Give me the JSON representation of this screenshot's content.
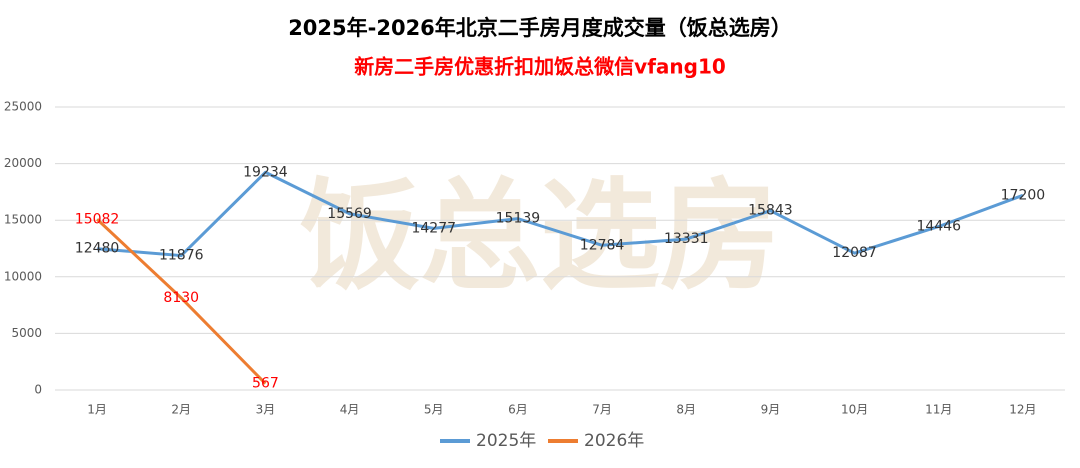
{
  "chart_data": {
    "type": "line",
    "title": "2025年-2026年北京二手房月度成交量（饭总选房）",
    "subtitle": "新房二手房优惠折扣加饭总微信vfang10",
    "watermark": "饭总选房",
    "categories": [
      "1月",
      "2月",
      "3月",
      "4月",
      "5月",
      "6月",
      "7月",
      "8月",
      "9月",
      "10月",
      "11月",
      "12月"
    ],
    "series": [
      {
        "name": "2025年",
        "color": "#5b9bd5",
        "label_color": "#333333",
        "values": [
          12480,
          11876,
          19234,
          15569,
          14277,
          15139,
          12784,
          13331,
          15843,
          12087,
          14446,
          17200
        ]
      },
      {
        "name": "2026年",
        "color": "#ed7d31",
        "label_color": "#ff0000",
        "values": [
          15082,
          8130,
          567,
          null,
          null,
          null,
          null,
          null,
          null,
          null,
          null,
          null
        ]
      }
    ],
    "ylim": [
      0,
      25000
    ],
    "yticks": [
      0,
      5000,
      10000,
      15000,
      20000,
      25000
    ],
    "grid": true,
    "legend": "bottom"
  }
}
